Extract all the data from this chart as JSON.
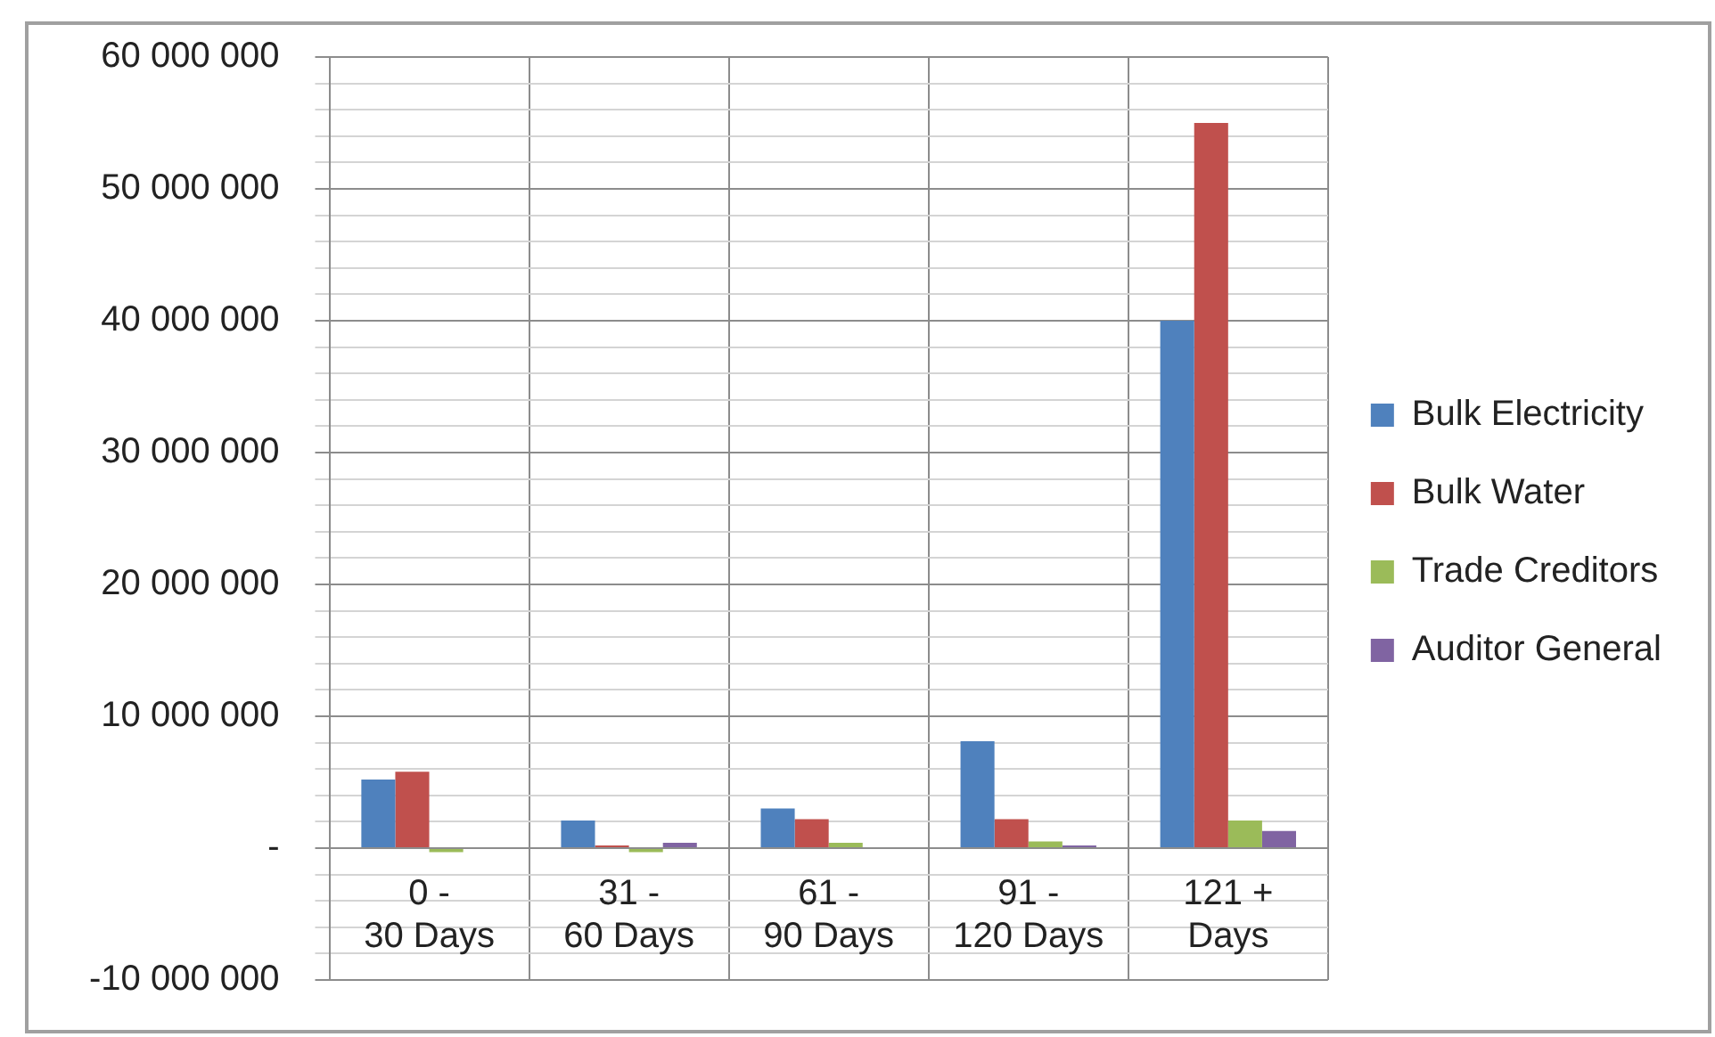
{
  "chart_data": {
    "type": "bar",
    "categories": [
      "0 - 30 Days",
      "31 - 60 Days",
      "61 - 90 Days",
      "91 - 120 Days",
      "121 + Days"
    ],
    "series": [
      {
        "name": "Bulk Electricity",
        "color": "#4f81bd",
        "values": [
          5200000,
          2100000,
          3000000,
          8100000,
          40000000
        ]
      },
      {
        "name": "Bulk Water",
        "color": "#c0504d",
        "values": [
          5800000,
          200000,
          2200000,
          2200000,
          55000000
        ]
      },
      {
        "name": "Trade Creditors",
        "color": "#9bbb59",
        "values": [
          -300000,
          -300000,
          400000,
          500000,
          2100000
        ]
      },
      {
        "name": "Auditor General",
        "color": "#8064a2",
        "values": [
          0,
          400000,
          0,
          200000,
          1300000
        ]
      }
    ],
    "ylim": [
      -10000000,
      60000000
    ],
    "yticks": [
      {
        "value": -10000000,
        "label": "-10 000 000"
      },
      {
        "value": -8000000,
        "label": null
      },
      {
        "value": -6000000,
        "label": null
      },
      {
        "value": -4000000,
        "label": null
      },
      {
        "value": -2000000,
        "label": null
      },
      {
        "value": 0,
        "label": "-"
      },
      {
        "value": 2000000,
        "label": null
      },
      {
        "value": 4000000,
        "label": null
      },
      {
        "value": 6000000,
        "label": null
      },
      {
        "value": 8000000,
        "label": null
      },
      {
        "value": 10000000,
        "label": "10 000 000"
      },
      {
        "value": 12000000,
        "label": null
      },
      {
        "value": 14000000,
        "label": null
      },
      {
        "value": 16000000,
        "label": null
      },
      {
        "value": 18000000,
        "label": null
      },
      {
        "value": 20000000,
        "label": "20 000 000"
      },
      {
        "value": 22000000,
        "label": null
      },
      {
        "value": 24000000,
        "label": null
      },
      {
        "value": 26000000,
        "label": null
      },
      {
        "value": 28000000,
        "label": null
      },
      {
        "value": 30000000,
        "label": "30 000 000"
      },
      {
        "value": 32000000,
        "label": null
      },
      {
        "value": 34000000,
        "label": null
      },
      {
        "value": 36000000,
        "label": null
      },
      {
        "value": 38000000,
        "label": null
      },
      {
        "value": 40000000,
        "label": "40 000 000"
      },
      {
        "value": 42000000,
        "label": null
      },
      {
        "value": 44000000,
        "label": null
      },
      {
        "value": 46000000,
        "label": null
      },
      {
        "value": 48000000,
        "label": null
      },
      {
        "value": 50000000,
        "label": "50 000 000"
      },
      {
        "value": 52000000,
        "label": null
      },
      {
        "value": 54000000,
        "label": null
      },
      {
        "value": 56000000,
        "label": null
      },
      {
        "value": 58000000,
        "label": null
      },
      {
        "value": 60000000,
        "label": "60 000 000"
      }
    ],
    "grid": true,
    "legend": "right"
  }
}
